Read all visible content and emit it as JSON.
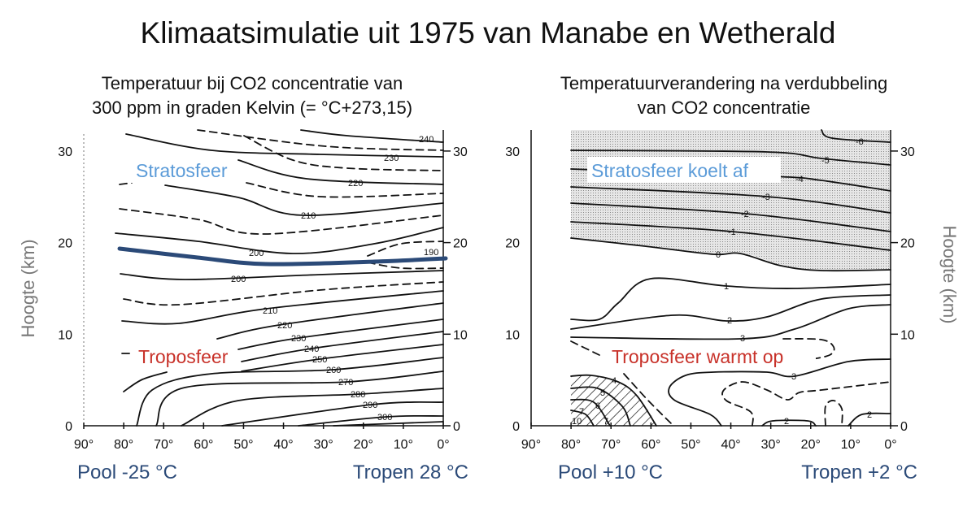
{
  "title": "Klimaatsimulatie uit 1975 van Manabe en Wetherald",
  "left_panel": {
    "subtitle_line1": "Temperatuur bij CO2 concentratie van",
    "subtitle_line2": "300 ppm in graden Kelvin (= °C+273,15)",
    "stratosphere_label": "Stratosfeer",
    "troposphere_label": "Troposfeer",
    "contour_labels": [
      "240",
      "230",
      "220",
      "210",
      "200",
      "190",
      "200",
      "210",
      "220",
      "230",
      "240",
      "250",
      "260",
      "270",
      "280",
      "290",
      "300"
    ],
    "bottom_left": "Pool -25 °C",
    "bottom_right": "Tropen 28 °C"
  },
  "right_panel": {
    "subtitle_line1": "Temperatuurverandering na verdubbeling",
    "subtitle_line2": "van CO2 concentratie",
    "stratosphere_label": "Stratosfeer koelt af",
    "troposphere_label": "Troposfeer warmt op",
    "contour_labels": [
      "-6",
      "-5",
      "-4",
      "-3",
      "-2",
      "-1",
      "0",
      "1",
      "2",
      "3",
      "3",
      "2",
      "2",
      "4",
      "5",
      "6",
      "7",
      "10",
      "7"
    ],
    "bottom_left": "Pool +10 °C",
    "bottom_right": "Tropen +2 °C"
  },
  "y_axis_label": "Hoogte (km)",
  "x_ticks": [
    "90°",
    "80°",
    "70°",
    "60°",
    "50°",
    "40°",
    "30°",
    "20°",
    "10°",
    "0°"
  ],
  "y_ticks": [
    "0",
    "10",
    "20",
    "30"
  ],
  "colors": {
    "stratosphere": "#5b9bd8",
    "troposphere": "#c8322a",
    "tropopause": "#2b4a78",
    "bottom_labels": "#2b4a78"
  }
}
